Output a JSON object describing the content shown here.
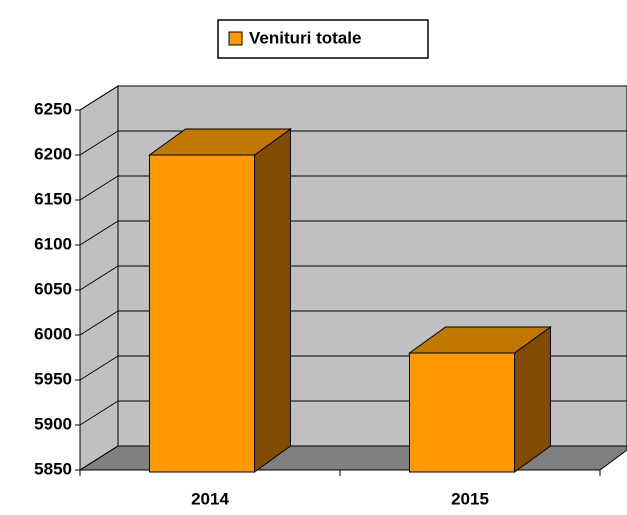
{
  "chart_data": {
    "type": "bar3d",
    "categories": [
      "2014",
      "2015"
    ],
    "series": [
      {
        "name": "Venituri totale",
        "color": "#ff9900",
        "values": [
          6200,
          5980
        ]
      }
    ],
    "ylim": [
      5850,
      6250
    ],
    "yticks": [
      5850,
      5900,
      5950,
      6000,
      6050,
      6100,
      6150,
      6200,
      6250
    ],
    "grid": true,
    "legend": "top"
  }
}
